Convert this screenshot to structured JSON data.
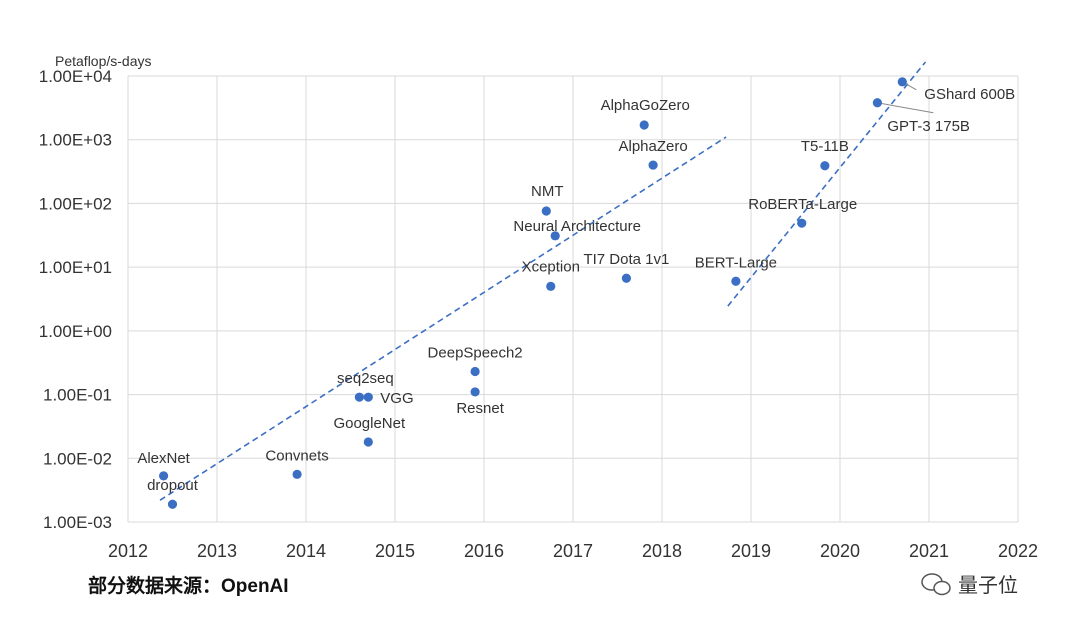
{
  "chart_data": {
    "type": "scatter",
    "ylabel": "Petaflop/s-days",
    "xlabel": "",
    "yscale": "log",
    "ylim": [
      0.001,
      10000
    ],
    "xlim": [
      2012,
      2022
    ],
    "grid": true,
    "y_ticks": [
      "1.00E-03",
      "1.00E-02",
      "1.00E-01",
      "1.00E+00",
      "1.00E+01",
      "1.00E+02",
      "1.00E+03",
      "1.00E+04"
    ],
    "x_ticks": [
      "2012",
      "2013",
      "2014",
      "2015",
      "2016",
      "2017",
      "2018",
      "2019",
      "2020",
      "2021",
      "2022"
    ],
    "point_color": "#3a6fc4",
    "trendline_color": "#3a6fc4",
    "points": [
      {
        "label": "AlexNet",
        "x": 2012.4,
        "y": 0.0053
      },
      {
        "label": "dropout",
        "x": 2012.5,
        "y": 0.0019
      },
      {
        "label": "Convnets",
        "x": 2013.9,
        "y": 0.0056
      },
      {
        "label": "seq2seq",
        "x": 2014.6,
        "y": 0.091
      },
      {
        "label": "VGG",
        "x": 2014.7,
        "y": 0.091
      },
      {
        "label": "GoogleNet",
        "x": 2014.7,
        "y": 0.018
      },
      {
        "label": "DeepSpeech2",
        "x": 2015.9,
        "y": 0.23
      },
      {
        "label": "Resnet",
        "x": 2015.9,
        "y": 0.11
      },
      {
        "label": "Xception",
        "x": 2016.75,
        "y": 5.0
      },
      {
        "label": "NMT",
        "x": 2016.7,
        "y": 76
      },
      {
        "label": "Neural Architecture",
        "x": 2016.8,
        "y": 31
      },
      {
        "label": "TI7 Dota 1v1",
        "x": 2017.6,
        "y": 6.7
      },
      {
        "label": "AlphaGoZero",
        "x": 2017.8,
        "y": 1700
      },
      {
        "label": "AlphaZero",
        "x": 2017.9,
        "y": 400
      },
      {
        "label": "BERT-Large",
        "x": 2018.83,
        "y": 6.0
      },
      {
        "label": "RoBERTa-Large",
        "x": 2019.57,
        "y": 49
      },
      {
        "label": "T5-11B",
        "x": 2019.83,
        "y": 390
      },
      {
        "label": "GPT-3 175B",
        "x": 2020.42,
        "y": 3800
      },
      {
        "label": "GShard 600B",
        "x": 2020.7,
        "y": 8100
      }
    ],
    "trendlines": [
      {
        "x": [
          2012.36,
          2018.72
        ],
        "y": [
          0.0022,
          1100
        ]
      },
      {
        "x": [
          2018.74,
          2020.96
        ],
        "y": [
          2.45,
          16600
        ]
      }
    ]
  },
  "footer": {
    "source": "部分数据来源：OpenAI",
    "watermark": "量子位"
  }
}
